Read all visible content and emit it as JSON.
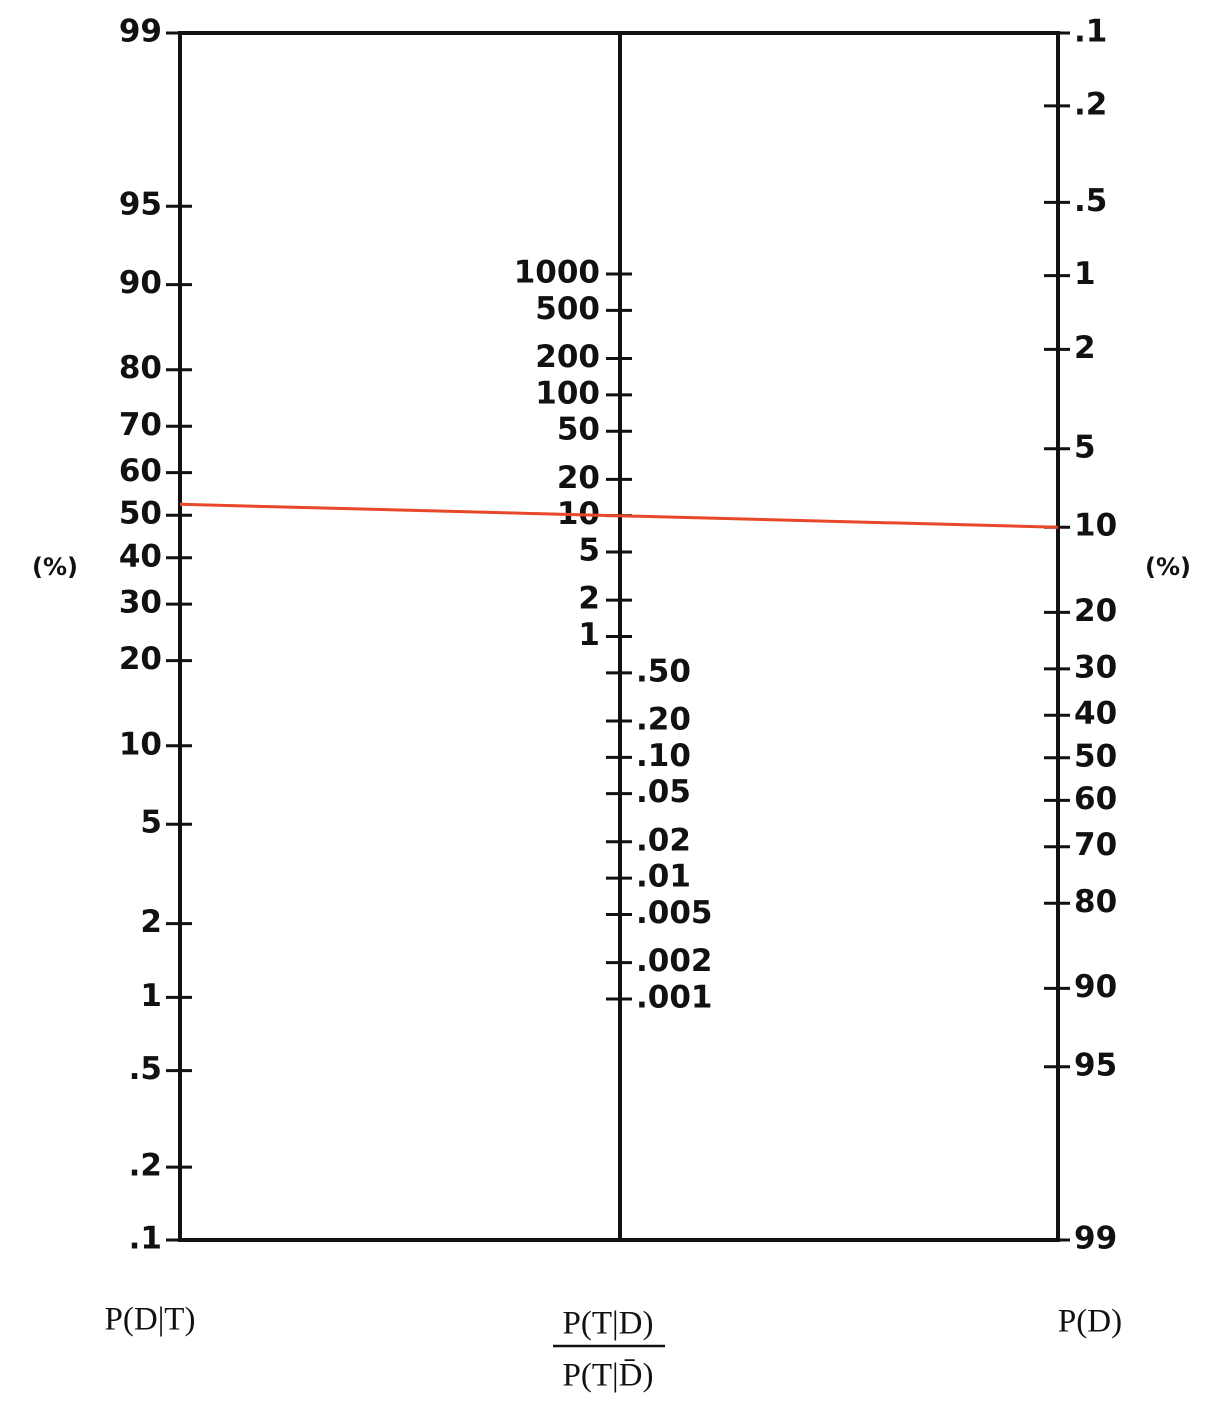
{
  "chart_data": {
    "type": "nomogram",
    "axes": [
      {
        "title": "P(D|T)",
        "unit": "(%)",
        "scale": "logit",
        "range": [
          0.1,
          99
        ],
        "ticks": [
          99,
          95,
          90,
          80,
          70,
          60,
          50,
          40,
          30,
          20,
          10,
          5,
          2,
          1,
          {
            "value": 0.5,
            "label": ".5"
          },
          {
            "value": 0.2,
            "label": ".2"
          },
          {
            "value": 0.1,
            "label": ".1"
          }
        ]
      },
      {
        "title": [
          "P(T|D)",
          "P(T|D̄)"
        ],
        "scale": "log",
        "ticks": [
          1000,
          500,
          200,
          100,
          50,
          20,
          10,
          5,
          2,
          1,
          {
            "value": 0.5,
            "label": ".50"
          },
          {
            "value": 0.2,
            "label": ".20"
          },
          {
            "value": 0.1,
            "label": ".10"
          },
          {
            "value": 0.05,
            "label": ".05"
          },
          {
            "value": 0.02,
            "label": ".02"
          },
          {
            "value": 0.01,
            "label": ".01"
          },
          {
            "value": 0.005,
            "label": ".005"
          },
          {
            "value": 0.002,
            "label": ".002"
          },
          {
            "value": 0.001,
            "label": ".001"
          }
        ]
      },
      {
        "title": "P(D)",
        "unit": "(%)",
        "scale": "logit",
        "range": [
          99,
          0.1
        ],
        "ticks": [
          {
            "value": 0.1,
            "label": ".1"
          },
          {
            "value": 0.2,
            "label": ".2"
          },
          {
            "value": 0.5,
            "label": ".5"
          },
          1,
          2,
          5,
          10,
          20,
          30,
          40,
          50,
          60,
          70,
          80,
          90,
          95,
          99
        ]
      }
    ],
    "line": {
      "color": "#e8472a",
      "left": 52.6,
      "right": 10
    }
  }
}
